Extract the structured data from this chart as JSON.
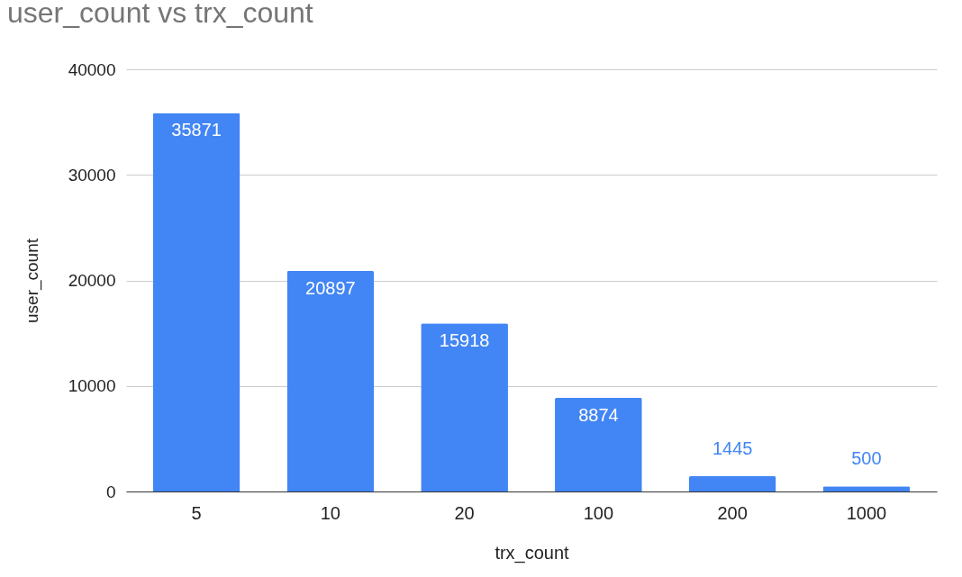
{
  "chart_data": {
    "type": "bar",
    "title": "user_count vs trx_count",
    "xlabel": "trx_count",
    "ylabel": "user_count",
    "categories": [
      "5",
      "10",
      "20",
      "100",
      "200",
      "1000"
    ],
    "values": [
      35871,
      20897,
      15918,
      8874,
      1445,
      500
    ],
    "color": "#4285f4",
    "ylim": [
      0,
      40000
    ],
    "yticks": [
      0,
      10000,
      20000,
      30000,
      40000
    ],
    "grid": "y",
    "data_labels": true
  }
}
